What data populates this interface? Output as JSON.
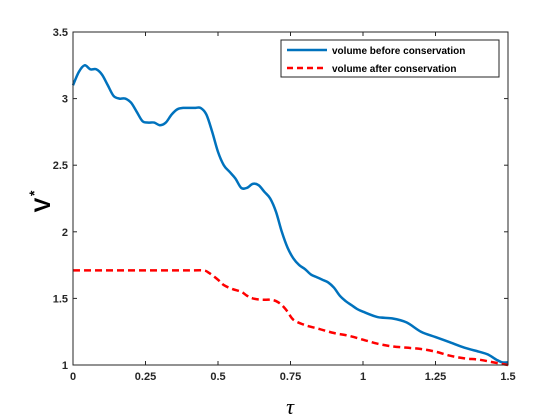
{
  "chart_data": {
    "type": "line",
    "title": "",
    "xlabel": "τ",
    "ylabel": "V",
    "ylabel_superscript": "*",
    "xlim": [
      0,
      1.5
    ],
    "ylim": [
      1,
      3.5
    ],
    "xticks": [
      0,
      0.25,
      0.5,
      0.75,
      1,
      1.25,
      1.5
    ],
    "xtick_labels": [
      "0",
      "0.25",
      "0.5",
      "0.75",
      "1",
      "1.25",
      "1.5"
    ],
    "yticks": [
      1,
      1.5,
      2,
      2.5,
      3,
      3.5
    ],
    "ytick_labels": [
      "1",
      "1.5",
      "2",
      "2.5",
      "3",
      "3.5"
    ],
    "grid": false,
    "legend_position": "top-right",
    "series": [
      {
        "name": "volume before conservation",
        "color": "#0072BD",
        "style": "solid",
        "x": [
          0,
          0.02,
          0.04,
          0.06,
          0.08,
          0.1,
          0.12,
          0.14,
          0.16,
          0.18,
          0.2,
          0.22,
          0.24,
          0.26,
          0.28,
          0.3,
          0.32,
          0.34,
          0.36,
          0.38,
          0.4,
          0.42,
          0.44,
          0.46,
          0.48,
          0.5,
          0.52,
          0.54,
          0.56,
          0.58,
          0.6,
          0.62,
          0.64,
          0.66,
          0.68,
          0.7,
          0.72,
          0.74,
          0.76,
          0.78,
          0.8,
          0.82,
          0.84,
          0.86,
          0.88,
          0.9,
          0.92,
          0.94,
          0.96,
          0.98,
          1.0,
          1.05,
          1.1,
          1.15,
          1.2,
          1.25,
          1.3,
          1.35,
          1.4,
          1.43,
          1.46,
          1.48,
          1.5
        ],
        "y": [
          3.1,
          3.2,
          3.25,
          3.22,
          3.22,
          3.18,
          3.1,
          3.02,
          3.0,
          3.0,
          2.97,
          2.9,
          2.83,
          2.82,
          2.82,
          2.8,
          2.82,
          2.88,
          2.92,
          2.93,
          2.93,
          2.93,
          2.93,
          2.88,
          2.75,
          2.6,
          2.5,
          2.45,
          2.4,
          2.33,
          2.33,
          2.36,
          2.35,
          2.3,
          2.25,
          2.15,
          2.0,
          1.88,
          1.8,
          1.75,
          1.72,
          1.68,
          1.66,
          1.64,
          1.62,
          1.58,
          1.52,
          1.48,
          1.45,
          1.42,
          1.4,
          1.36,
          1.35,
          1.32,
          1.25,
          1.21,
          1.17,
          1.13,
          1.1,
          1.08,
          1.04,
          1.02,
          1.02
        ]
      },
      {
        "name": "volume after conservation",
        "color": "#FF0000",
        "style": "dashed",
        "x": [
          0,
          0.05,
          0.1,
          0.15,
          0.2,
          0.25,
          0.3,
          0.35,
          0.4,
          0.45,
          0.47,
          0.5,
          0.52,
          0.55,
          0.58,
          0.6,
          0.62,
          0.65,
          0.68,
          0.7,
          0.72,
          0.74,
          0.76,
          0.8,
          0.85,
          0.9,
          0.95,
          1.0,
          1.05,
          1.1,
          1.15,
          1.2,
          1.25,
          1.3,
          1.35,
          1.4,
          1.45,
          1.5
        ],
        "y": [
          1.71,
          1.71,
          1.71,
          1.71,
          1.71,
          1.71,
          1.71,
          1.71,
          1.71,
          1.71,
          1.69,
          1.64,
          1.6,
          1.57,
          1.55,
          1.52,
          1.5,
          1.49,
          1.49,
          1.48,
          1.45,
          1.4,
          1.34,
          1.3,
          1.27,
          1.24,
          1.22,
          1.19,
          1.16,
          1.14,
          1.13,
          1.12,
          1.1,
          1.07,
          1.05,
          1.04,
          1.02,
          1.0
        ]
      }
    ]
  }
}
